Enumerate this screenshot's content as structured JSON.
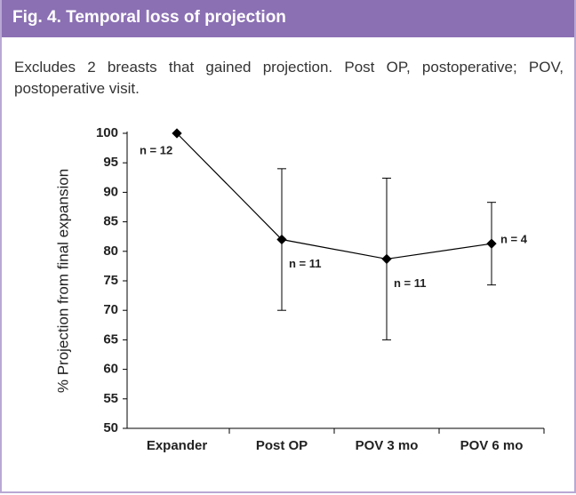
{
  "header": {
    "title": "Fig. 4. Temporal loss of projection"
  },
  "caption": "Excludes 2 breasts that gained projection. Post OP, postoperative; POV, postoperative visit.",
  "chart_data": {
    "type": "line",
    "ylabel": "% Projection from final expansion",
    "categories": [
      "Expander",
      "Post OP",
      "POV 3 mo",
      "POV 6 mo"
    ],
    "values": [
      100,
      82,
      78.7,
      81.3
    ],
    "errors": [
      0,
      12,
      13.7,
      7
    ],
    "annotations": [
      "n = 12",
      "n = 11",
      "n = 11",
      "n = 4"
    ],
    "color": "#000000",
    "ylim": [
      50,
      100
    ],
    "yticks": [
      50,
      55,
      60,
      65,
      70,
      75,
      80,
      85,
      90,
      95,
      100
    ],
    "grid": false
  }
}
